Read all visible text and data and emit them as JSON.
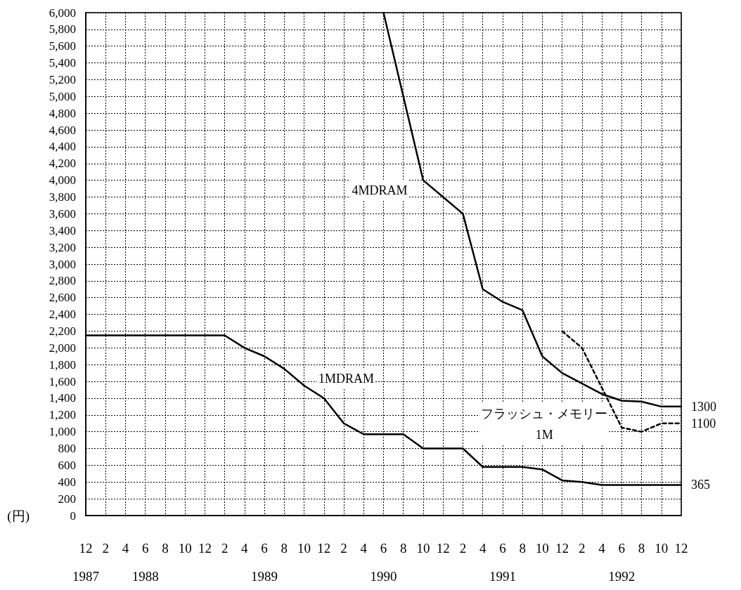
{
  "chart_data": {
    "type": "line",
    "ylabel": "(円)",
    "marker": "none",
    "grid": true,
    "xlim": [
      "1987-12",
      "1992-12"
    ],
    "ylim": [
      0,
      6000
    ],
    "xticks": [
      {
        "value": "1987-12",
        "label": "12\n1987"
      },
      {
        "value": "1988-02",
        "label": "2"
      },
      {
        "value": "1988-04",
        "label": "4"
      },
      {
        "value": "1988-06",
        "label": "6\n1988"
      },
      {
        "value": "1988-08",
        "label": "8"
      },
      {
        "value": "1988-10",
        "label": "10"
      },
      {
        "value": "1988-12",
        "label": "12"
      },
      {
        "value": "1989-02",
        "label": "2"
      },
      {
        "value": "1989-04",
        "label": "4"
      },
      {
        "value": "1989-06",
        "label": "6\n1989"
      },
      {
        "value": "1989-08",
        "label": "8"
      },
      {
        "value": "1989-10",
        "label": "10"
      },
      {
        "value": "1989-12",
        "label": "12"
      },
      {
        "value": "1990-02",
        "label": "2"
      },
      {
        "value": "1990-04",
        "label": "4"
      },
      {
        "value": "1990-06",
        "label": "6\n1990"
      },
      {
        "value": "1990-08",
        "label": "8"
      },
      {
        "value": "1990-10",
        "label": "10"
      },
      {
        "value": "1990-12",
        "label": "12"
      },
      {
        "value": "1991-02",
        "label": "2"
      },
      {
        "value": "1991-04",
        "label": "4"
      },
      {
        "value": "1991-06",
        "label": "6\n1991"
      },
      {
        "value": "1991-08",
        "label": "8"
      },
      {
        "value": "1991-10",
        "label": "10"
      },
      {
        "value": "1991-12",
        "label": "12"
      },
      {
        "value": "1992-02",
        "label": "2"
      },
      {
        "value": "1992-04",
        "label": "4"
      },
      {
        "value": "1992-06",
        "label": "6\n1992"
      },
      {
        "value": "1992-08",
        "label": "8"
      },
      {
        "value": "1992-10",
        "label": "10"
      },
      {
        "value": "1992-12",
        "label": "12"
      }
    ],
    "yticks": [
      0,
      200,
      400,
      600,
      800,
      {
        "value": 1000,
        "label": "1,000"
      },
      {
        "value": 1200,
        "label": "1,200"
      },
      {
        "value": 1400,
        "label": "1,400"
      },
      {
        "value": 1600,
        "label": "1,600"
      },
      {
        "value": 1800,
        "label": "1,800"
      },
      {
        "value": 2000,
        "label": "2,000"
      },
      {
        "value": 2200,
        "label": "2,200"
      },
      {
        "value": 2400,
        "label": "2,400"
      },
      {
        "value": 2600,
        "label": "2,600"
      },
      {
        "value": 2800,
        "label": "2,800"
      },
      {
        "value": 3000,
        "label": "3,000"
      },
      {
        "value": 3200,
        "label": "3,200"
      },
      {
        "value": 3400,
        "label": "3,400"
      },
      {
        "value": 3600,
        "label": "3,600"
      },
      {
        "value": 3800,
        "label": "3,800"
      },
      {
        "value": 4000,
        "label": "4,000"
      },
      {
        "value": 4200,
        "label": "4,200"
      },
      {
        "value": 4400,
        "label": "4,400"
      },
      {
        "value": 4600,
        "label": "4,600"
      },
      {
        "value": 4800,
        "label": "4,800"
      },
      {
        "value": 5000,
        "label": "5,000"
      },
      {
        "value": 5200,
        "label": "5,200"
      },
      {
        "value": 5400,
        "label": "5,400"
      },
      {
        "value": 5600,
        "label": "5,600"
      },
      {
        "value": 5800,
        "label": "5,800"
      },
      {
        "value": 6000,
        "label": "6,000"
      }
    ],
    "series": [
      {
        "name": "1MDRAM",
        "color": "#000000",
        "line_style": "solid",
        "x": [
          "1987-12",
          "1989-02",
          "1989-04",
          "1989-06",
          "1989-08",
          "1989-10",
          "1989-12",
          "1990-02",
          "1990-04",
          "1990-08",
          "1990-10",
          "1991-02",
          "1991-04",
          "1991-08",
          "1991-10",
          "1991-12",
          "1992-02",
          "1992-04",
          "1992-12"
        ],
        "values": [
          2150,
          2150,
          2000,
          1900,
          1750,
          1550,
          1400,
          1100,
          970,
          970,
          800,
          800,
          580,
          580,
          550,
          420,
          400,
          365,
          365
        ],
        "value_labels": [
          null,
          null,
          null,
          null,
          null,
          null,
          null,
          null,
          null,
          null,
          null,
          null,
          null,
          null,
          null,
          null,
          null,
          null,
          "365"
        ]
      },
      {
        "name": "4MDRAM",
        "color": "#000000",
        "line_style": "solid",
        "x": [
          "1990-06",
          "1990-10",
          "1990-12",
          "1991-02",
          "1991-04",
          "1991-06",
          "1991-08",
          "1991-10",
          "1991-12",
          "1992-04",
          "1992-06",
          "1992-08",
          "1992-10",
          "1992-12"
        ],
        "values": [
          6000,
          4000,
          3800,
          3600,
          2700,
          2550,
          2450,
          1900,
          1700,
          1450,
          1370,
          1360,
          1300,
          1300
        ],
        "value_labels": [
          null,
          null,
          null,
          null,
          null,
          null,
          null,
          null,
          null,
          null,
          null,
          null,
          null,
          "1300"
        ]
      },
      {
        "name": "フラッシュ・メモリー\n1M",
        "color": "#000000",
        "line_style": "dashed",
        "x": [
          "1991-12",
          "1992-02",
          "1992-06",
          "1992-08",
          "1992-10",
          "1992-12"
        ],
        "values": [
          2200,
          2000,
          1050,
          1000,
          1100,
          1100
        ],
        "value_labels": [
          null,
          null,
          null,
          null,
          null,
          "1100"
        ]
      }
    ]
  }
}
